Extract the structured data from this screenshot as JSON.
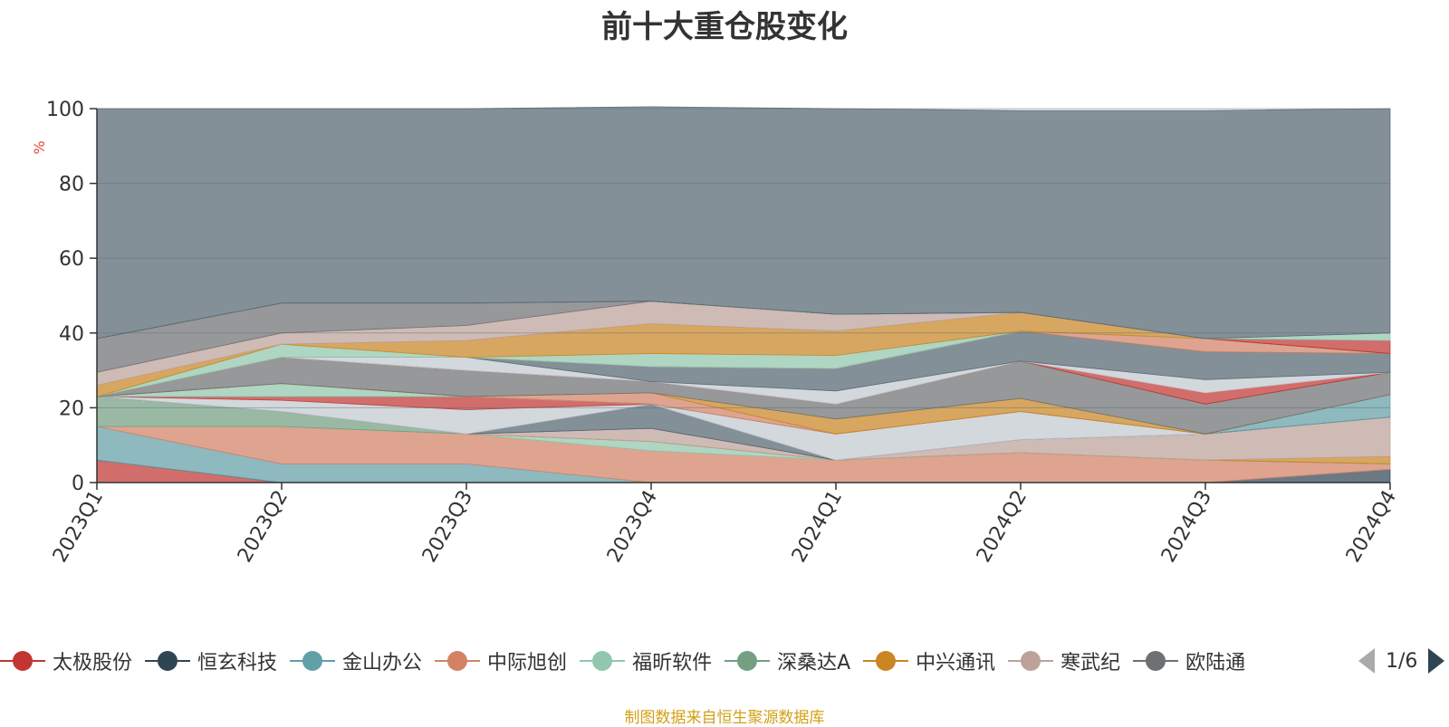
{
  "chart_data": {
    "type": "area",
    "stacked": true,
    "title": "前十大重仓股变化",
    "y_unit": "%",
    "ylim": [
      0,
      100
    ],
    "y_ticks": [
      0,
      20,
      40,
      60,
      80,
      100
    ],
    "grid": true,
    "categories": [
      "2023Q1",
      "2023Q2",
      "2023Q3",
      "2023Q4",
      "2024Q1",
      "2024Q2",
      "2024Q3",
      "2024Q4"
    ],
    "series": [
      {
        "name": "太极股份",
        "color": "#c23531",
        "values": [
          6,
          0,
          0,
          0,
          0,
          0,
          0,
          0
        ]
      },
      {
        "name": "恒玄科技",
        "color": "#2f4554",
        "values": [
          0,
          0,
          0,
          0,
          0,
          0,
          0,
          3.5
        ]
      },
      {
        "name": "金山办公",
        "color": "#61a0a8",
        "values": [
          9,
          5,
          5,
          0,
          0,
          0,
          0,
          0
        ]
      },
      {
        "name": "中际旭创",
        "color": "#d48265",
        "values": [
          0,
          10,
          8,
          8.5,
          6,
          8,
          6,
          1.5
        ]
      },
      {
        "name": "福昕软件",
        "color": "#91c7ae",
        "values": [
          0,
          0,
          0,
          2.5,
          0,
          0,
          0,
          0
        ]
      },
      {
        "name": "深桑达A",
        "color": "#749f83",
        "values": [
          8,
          4,
          0,
          0,
          0,
          0,
          0,
          0
        ]
      },
      {
        "name": "中兴通讯",
        "color": "#ca8622",
        "values": [
          0,
          0,
          0,
          0,
          0,
          0,
          0,
          2
        ]
      },
      {
        "name": "寒武纪",
        "color": "#bda29a",
        "values": [
          0,
          0,
          0,
          3.5,
          0,
          3.5,
          7,
          10.5
        ]
      },
      {
        "name": "欧陆通",
        "color": "#6e7074",
        "values": [
          0,
          0,
          0,
          0,
          0,
          0,
          0,
          0
        ]
      },
      {
        "name": "",
        "color": "#546570",
        "values": [
          0,
          0,
          0,
          6.5,
          0,
          0,
          0,
          0
        ]
      },
      {
        "name": "",
        "color": "#c4ccd3",
        "values": [
          0,
          3,
          6.5,
          0,
          7,
          7.5,
          0,
          0
        ]
      },
      {
        "name": "",
        "color": "#c23531",
        "values": [
          0,
          1,
          3.5,
          0,
          0,
          0,
          0,
          0
        ]
      },
      {
        "name": "",
        "color": "#61a0a8",
        "values": [
          0,
          0,
          0,
          0,
          0,
          0,
          0,
          6
        ]
      },
      {
        "name": "",
        "color": "#91c7ae",
        "values": [
          0,
          3.5,
          0,
          0,
          0,
          0,
          0,
          0
        ]
      },
      {
        "name": "",
        "color": "#d48265",
        "values": [
          0,
          0,
          0,
          3,
          0,
          0,
          0,
          0
        ]
      },
      {
        "name": "",
        "color": "#ca8622",
        "values": [
          0,
          0,
          0,
          0,
          4,
          3.5,
          0,
          0
        ]
      },
      {
        "name": "",
        "color": "#6e7074",
        "values": [
          0,
          7,
          7,
          3,
          4,
          10,
          8,
          6
        ]
      },
      {
        "name": "",
        "color": "#749f83",
        "values": [
          0,
          0,
          0,
          0,
          0,
          0,
          0,
          0
        ]
      },
      {
        "name": "",
        "color": "#c23531",
        "values": [
          0,
          0,
          0,
          0,
          0,
          0,
          3,
          0
        ]
      },
      {
        "name": "",
        "color": "#c4ccd3",
        "values": [
          0,
          0,
          3.5,
          0,
          3.5,
          0,
          3.5,
          0
        ]
      },
      {
        "name": "",
        "color": "#546570",
        "values": [
          0,
          0,
          0,
          4,
          6,
          8,
          7.5,
          5
        ]
      },
      {
        "name": "",
        "color": "#d48265",
        "values": [
          0,
          0,
          0,
          0,
          0,
          0,
          3.5,
          0
        ]
      },
      {
        "name": "",
        "color": "#91c7ae",
        "values": [
          0,
          3.5,
          0,
          3.5,
          3.5,
          0,
          0,
          0
        ]
      },
      {
        "name": "",
        "color": "#ca8622",
        "values": [
          3,
          0,
          4.5,
          8,
          6.5,
          5,
          0,
          0
        ]
      },
      {
        "name": "",
        "color": "#bda29a",
        "values": [
          3.5,
          3,
          4,
          6,
          4.5,
          0,
          0,
          0
        ]
      },
      {
        "name": "",
        "color": "#6e7074",
        "values": [
          9,
          8,
          6,
          0,
          0,
          0,
          0,
          0
        ]
      },
      {
        "name": "",
        "color": "#c23531",
        "values": [
          0,
          0,
          0,
          0,
          0,
          0,
          0,
          3.5
        ]
      },
      {
        "name": "",
        "color": "#91c7ae",
        "values": [
          0,
          0,
          0,
          0,
          0,
          0,
          0,
          2
        ]
      },
      {
        "name": "",
        "color": "#546570",
        "values": [
          61.5,
          52,
          52,
          52,
          55,
          54,
          61,
          60
        ]
      }
    ]
  },
  "legend": {
    "items": [
      {
        "name": "太极股份",
        "color": "#c23531"
      },
      {
        "name": "恒玄科技",
        "color": "#2f4554"
      },
      {
        "name": "金山办公",
        "color": "#61a0a8"
      },
      {
        "name": "中际旭创",
        "color": "#d48265"
      },
      {
        "name": "福昕软件",
        "color": "#91c7ae"
      },
      {
        "name": "深桑达A",
        "color": "#749f83"
      },
      {
        "name": "中兴通讯",
        "color": "#ca8622"
      },
      {
        "name": "寒武纪",
        "color": "#bda29a"
      },
      {
        "name": "欧陆通",
        "color": "#6e7074"
      }
    ],
    "page_indicator": "1/6"
  },
  "source_note": "制图数据来自恒生聚源数据库"
}
